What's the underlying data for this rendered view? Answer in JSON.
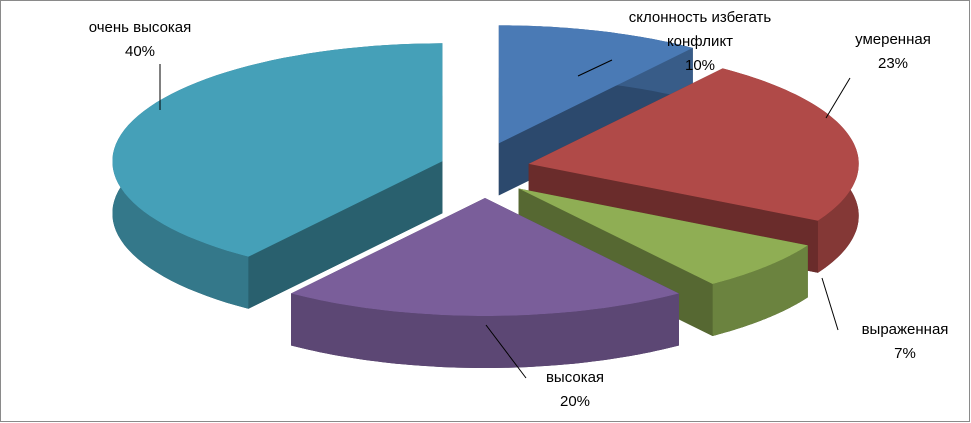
{
  "chart_data": {
    "type": "pie",
    "categories": [
      "склонность избегать конфликт",
      "умеренная",
      "выраженная",
      "высокая",
      "очень высокая"
    ],
    "values": [
      10,
      23,
      7,
      20,
      40
    ],
    "value_labels": [
      "10%",
      "23%",
      "7%",
      "20%",
      "40%"
    ],
    "colors": [
      "#4a7ab5",
      "#b04a48",
      "#8fae54",
      "#7a5e9a",
      "#45a0b8"
    ]
  }
}
